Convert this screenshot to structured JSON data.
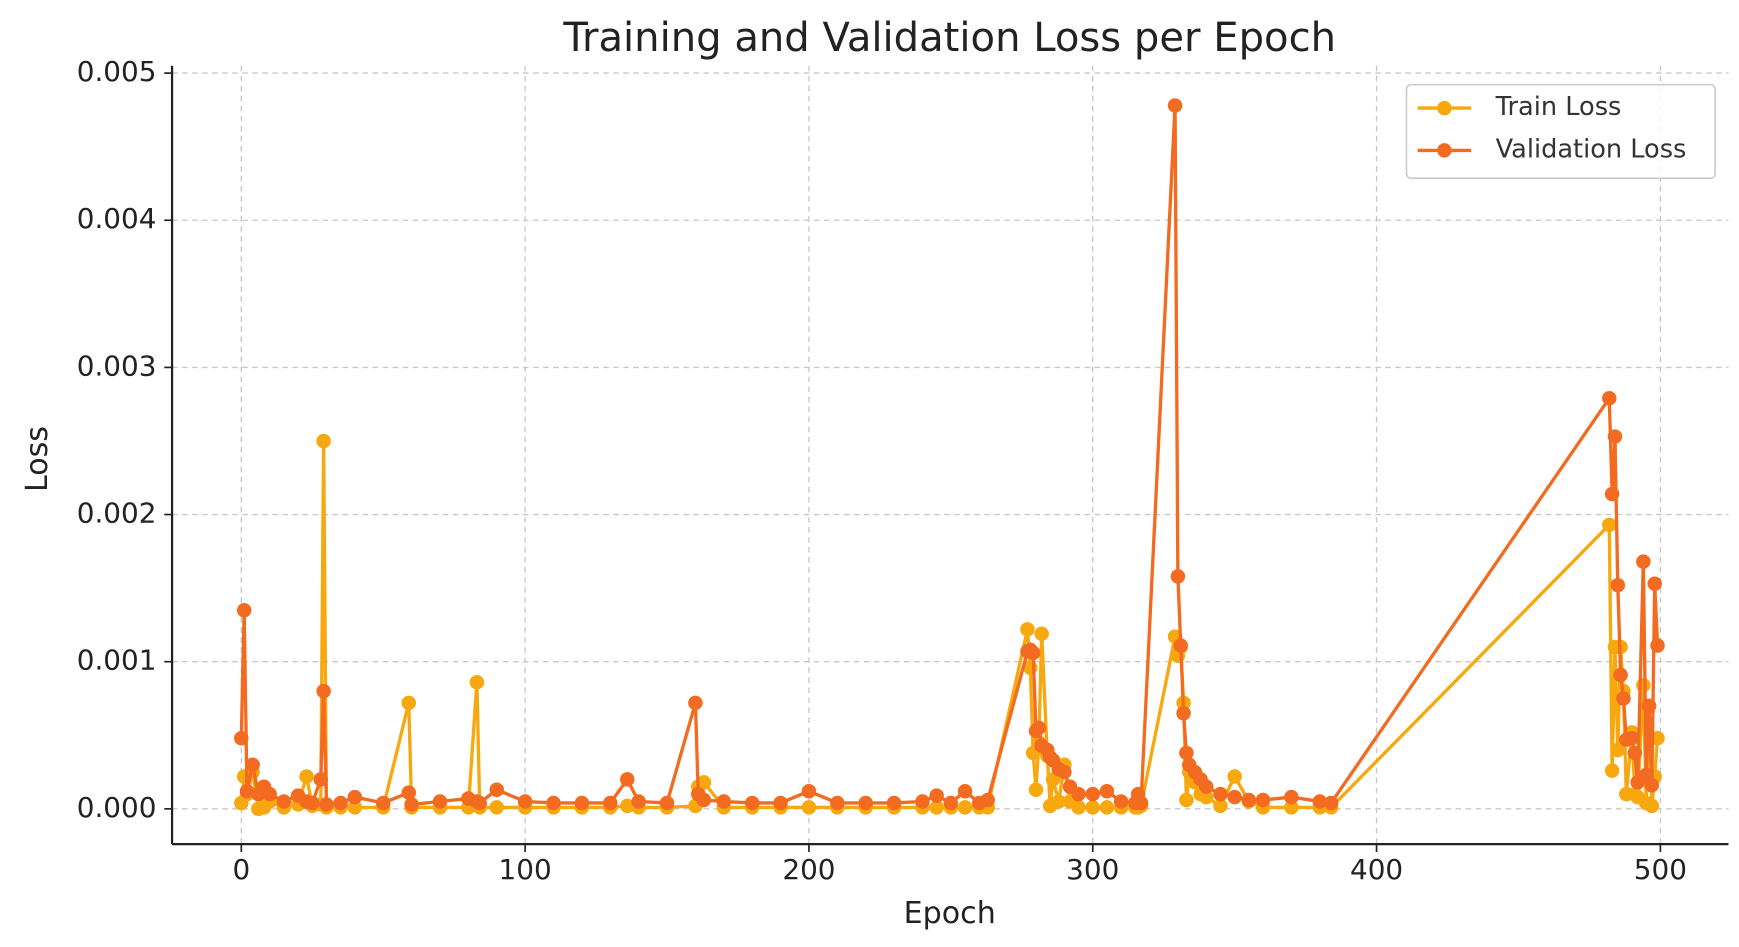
{
  "chart_data": {
    "type": "line",
    "title": "Training and Validation Loss per Epoch",
    "xlabel": "Epoch",
    "ylabel": "Loss",
    "x": [
      0,
      1,
      2,
      4,
      6,
      8,
      10,
      15,
      20,
      23,
      25,
      28,
      29,
      30,
      35,
      40,
      50,
      59,
      60,
      70,
      80,
      83,
      84,
      90,
      100,
      110,
      120,
      130,
      136,
      140,
      150,
      160,
      161,
      163,
      170,
      180,
      190,
      200,
      210,
      220,
      230,
      240,
      245,
      250,
      255,
      260,
      263,
      277,
      278,
      279,
      280,
      281,
      282,
      284,
      285,
      286,
      288,
      290,
      292,
      295,
      300,
      305,
      310,
      315,
      316,
      317,
      329,
      330,
      331,
      332,
      333,
      334,
      336,
      338,
      340,
      345,
      350,
      355,
      360,
      370,
      380,
      384,
      482,
      483,
      484,
      485,
      486,
      487,
      488,
      490,
      491,
      492,
      494,
      495,
      496,
      497,
      498,
      499
    ],
    "series": [
      {
        "name": "Train Loss",
        "color": "#f7a80e",
        "values": [
          4e-05,
          0.00022,
          0.0001,
          0.00025,
          0.0,
          1e-05,
          5e-05,
          1e-05,
          3e-05,
          0.00022,
          2e-05,
          3e-05,
          0.0025,
          1e-05,
          1e-05,
          1e-05,
          1e-05,
          0.00072,
          1e-05,
          1e-05,
          1e-05,
          0.00086,
          1e-05,
          1e-05,
          1e-05,
          1e-05,
          1e-05,
          1e-05,
          2e-05,
          1e-05,
          1e-05,
          2e-05,
          0.00015,
          0.00018,
          1e-05,
          1e-05,
          1e-05,
          1e-05,
          1e-05,
          1e-05,
          1e-05,
          1e-05,
          1e-05,
          1e-05,
          1e-05,
          1e-05,
          1e-05,
          0.00122,
          0.00096,
          0.00038,
          0.00013,
          0.00045,
          0.00119,
          0.00036,
          2e-05,
          0.0002,
          5e-05,
          0.0003,
          5e-05,
          1e-05,
          1e-05,
          1e-05,
          1e-05,
          1e-05,
          1e-05,
          2e-05,
          0.00117,
          0.00104,
          0.0011,
          0.00072,
          6e-05,
          0.00025,
          0.00018,
          0.0001,
          8e-05,
          2e-05,
          0.00022,
          5e-05,
          1e-05,
          1e-05,
          1e-05,
          1e-05,
          0.00193,
          0.00026,
          0.0011,
          0.0004,
          0.0011,
          0.0008,
          0.0001,
          0.00052,
          0.0001,
          8e-05,
          0.00084,
          4e-05,
          0.0007,
          2e-05,
          0.00022,
          0.00048
        ]
      },
      {
        "name": "Validation Loss",
        "color": "#f26b21",
        "values": [
          0.00048,
          0.00135,
          0.00012,
          0.0003,
          0.0001,
          0.00015,
          0.0001,
          5e-05,
          9e-05,
          5e-05,
          4e-05,
          0.0002,
          0.0008,
          3e-05,
          4e-05,
          8e-05,
          4e-05,
          0.00011,
          3e-05,
          5e-05,
          7e-05,
          5e-05,
          4e-05,
          0.00013,
          5e-05,
          4e-05,
          4e-05,
          4e-05,
          0.0002,
          5e-05,
          4e-05,
          0.00072,
          0.0001,
          6e-05,
          5e-05,
          4e-05,
          4e-05,
          0.00012,
          4e-05,
          4e-05,
          4e-05,
          5e-05,
          9e-05,
          4e-05,
          0.00012,
          4e-05,
          6e-05,
          0.00107,
          0.00108,
          0.00106,
          0.00053,
          0.00055,
          0.00043,
          0.0004,
          0.00035,
          0.00033,
          0.00027,
          0.00025,
          0.00015,
          0.0001,
          0.0001,
          0.00012,
          5e-05,
          4e-05,
          0.0001,
          4e-05,
          0.00478,
          0.00158,
          0.00111,
          0.00065,
          0.00038,
          0.0003,
          0.00025,
          0.0002,
          0.00015,
          0.0001,
          8e-05,
          6e-05,
          6e-05,
          8e-05,
          5e-05,
          4e-05,
          0.00279,
          0.00214,
          0.00253,
          0.00152,
          0.00091,
          0.00075,
          0.00047,
          0.00048,
          0.00038,
          0.00018,
          0.00168,
          0.00023,
          0.0007,
          0.00016,
          0.00153,
          0.00111
        ]
      }
    ],
    "xlim": [
      -24.4,
      524
    ],
    "ylim": [
      -0.00024,
      0.00505
    ],
    "xticks": [
      0,
      100,
      200,
      300,
      400,
      500
    ],
    "yticks": [
      {
        "value": 0,
        "label": "0.000"
      },
      {
        "value": 0.001,
        "label": "0.001"
      },
      {
        "value": 0.002,
        "label": "0.002"
      },
      {
        "value": 0.003,
        "label": "0.003"
      },
      {
        "value": 0.004,
        "label": "0.004"
      },
      {
        "value": 0.005,
        "label": "0.005"
      }
    ],
    "grid": true,
    "legend": "upper right"
  }
}
